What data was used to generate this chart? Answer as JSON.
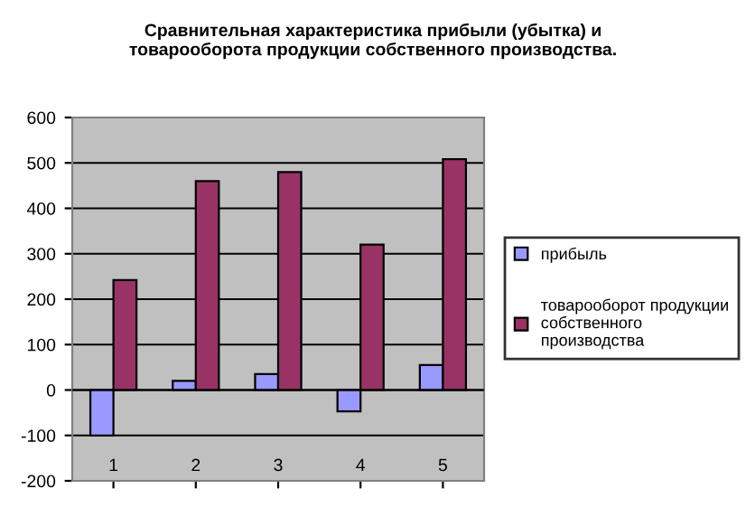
{
  "chart_data": {
    "type": "bar",
    "title": "Сравнительная характеристика прибыли (убытка) и\nтоварооборота продукции собственного производства.",
    "categories": [
      "1",
      "2",
      "3",
      "4",
      "5"
    ],
    "series": [
      {
        "name": "прибыль",
        "color": "#9999ff",
        "values": [
          -100,
          20,
          35,
          -47,
          55
        ]
      },
      {
        "name": "товарооборот продукции\nсобственного\nпроизводства",
        "color": "#993366",
        "values": [
          242,
          460,
          480,
          320,
          508
        ]
      }
    ],
    "ylim": [
      -200,
      600
    ],
    "yticks": [
      -200,
      -100,
      0,
      100,
      200,
      300,
      400,
      500,
      600
    ],
    "grid": "y",
    "legend": "right"
  }
}
